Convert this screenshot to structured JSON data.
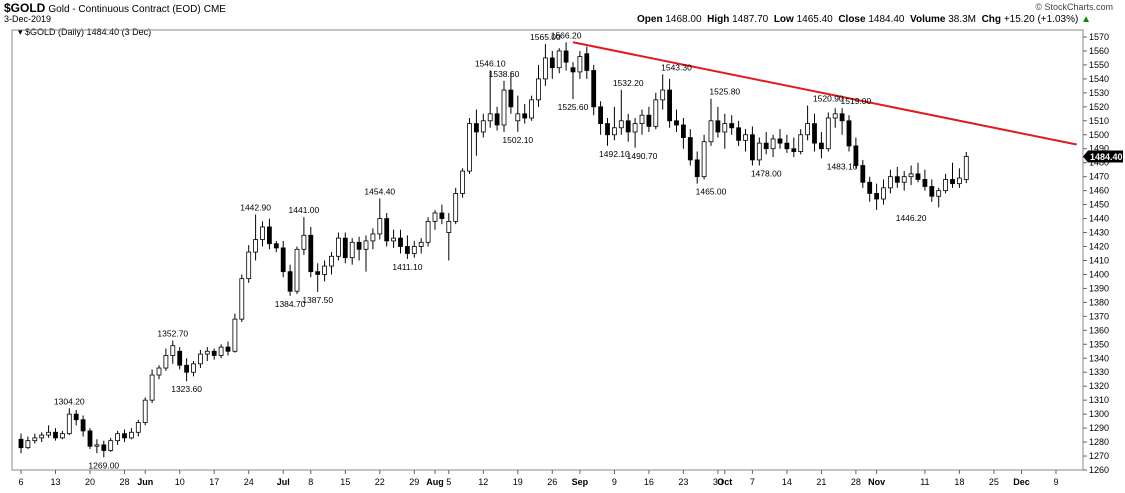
{
  "header": {
    "symbol": "$GOLD",
    "subtitle": "Gold - Continuous Contract (EOD)",
    "exchange": "CME",
    "date": "3-Dec-2019",
    "brand": "© StockCharts.com",
    "open_label": "Open",
    "open_value": "1468.00",
    "high_label": "High",
    "high_value": "1487.70",
    "low_label": "Low",
    "low_value": "1465.40",
    "close_label": "Close",
    "close_value": "1484.40",
    "volume_label": "Volume",
    "volume_value": "38.3M",
    "chg_label": "Chg",
    "chg_value": "+15.20 (+1.03%)",
    "chg_icon": "up-arrow-icon"
  },
  "legend": {
    "label": "$GOLD (Daily) 1484.40 (3 Dec)"
  },
  "colors": {
    "up_fill": "#ffffff",
    "down_fill": "#000000",
    "trendline": "#e31a1c",
    "grid": "#d8d8d8",
    "price_tag": "#000000",
    "chg_up": "#0a8a0a"
  },
  "chart_data": {
    "type": "candlestick",
    "title": "$GOLD (Daily) 1484.40 (3 Dec)",
    "ylim": [
      1260,
      1575
    ],
    "yticks": [
      1260,
      1270,
      1280,
      1290,
      1300,
      1310,
      1320,
      1330,
      1340,
      1350,
      1360,
      1370,
      1380,
      1390,
      1400,
      1410,
      1420,
      1430,
      1440,
      1450,
      1460,
      1470,
      1480,
      1490,
      1500,
      1510,
      1520,
      1530,
      1540,
      1550,
      1560,
      1570
    ],
    "grid": false,
    "last_price_tag": "1484.40",
    "xticks": [
      {
        "label": "6",
        "bar": 0
      },
      {
        "label": "13",
        "bar": 5
      },
      {
        "label": "20",
        "bar": 10
      },
      {
        "label": "28",
        "bar": 15
      },
      {
        "label": "Jun",
        "bar": 18,
        "bold": true
      },
      {
        "label": "10",
        "bar": 23
      },
      {
        "label": "17",
        "bar": 28
      },
      {
        "label": "24",
        "bar": 33
      },
      {
        "label": "Jul",
        "bar": 38,
        "bold": true
      },
      {
        "label": "8",
        "bar": 42
      },
      {
        "label": "15",
        "bar": 47
      },
      {
        "label": "22",
        "bar": 52
      },
      {
        "label": "29",
        "bar": 57
      },
      {
        "label": "Aug",
        "bar": 60,
        "bold": true
      },
      {
        "label": "5",
        "bar": 62
      },
      {
        "label": "12",
        "bar": 67
      },
      {
        "label": "19",
        "bar": 72
      },
      {
        "label": "26",
        "bar": 77
      },
      {
        "label": "Sep",
        "bar": 81,
        "bold": true
      },
      {
        "label": "9",
        "bar": 86
      },
      {
        "label": "16",
        "bar": 91
      },
      {
        "label": "23",
        "bar": 96
      },
      {
        "label": "30",
        "bar": 101
      },
      {
        "label": "Oct",
        "bar": 102,
        "bold": true
      },
      {
        "label": "7",
        "bar": 106
      },
      {
        "label": "14",
        "bar": 111
      },
      {
        "label": "21",
        "bar": 116
      },
      {
        "label": "28",
        "bar": 121
      },
      {
        "label": "Nov",
        "bar": 124,
        "bold": true
      },
      {
        "label": "11",
        "bar": 131
      },
      {
        "label": "18",
        "bar": 136
      },
      {
        "label": "25",
        "bar": 141
      },
      {
        "label": "Dec",
        "bar": 145,
        "bold": true
      },
      {
        "label": "9",
        "bar": 150
      }
    ],
    "candles": [
      [
        1282,
        1286,
        1272,
        1276
      ],
      [
        1276,
        1284,
        1275,
        1281
      ],
      [
        1281,
        1286,
        1279,
        1283
      ],
      [
        1283,
        1287,
        1280,
        1285
      ],
      [
        1285,
        1292,
        1283,
        1287
      ],
      [
        1287,
        1290,
        1281,
        1283
      ],
      [
        1283,
        1288,
        1282,
        1286
      ],
      [
        1286,
        1304.2,
        1285,
        1300
      ],
      [
        1300,
        1303,
        1292,
        1296
      ],
      [
        1296,
        1299,
        1284,
        1288
      ],
      [
        1288,
        1290,
        1275,
        1277
      ],
      [
        1277,
        1282,
        1272,
        1278
      ],
      [
        1278,
        1281,
        1269,
        1274
      ],
      [
        1274,
        1283,
        1273,
        1281
      ],
      [
        1281,
        1288,
        1278,
        1286
      ],
      [
        1286,
        1289,
        1280,
        1283
      ],
      [
        1283,
        1290,
        1282,
        1287
      ],
      [
        1287,
        1296,
        1284,
        1294
      ],
      [
        1294,
        1312,
        1292,
        1310
      ],
      [
        1310,
        1332,
        1308,
        1328
      ],
      [
        1328,
        1335,
        1325,
        1333
      ],
      [
        1333,
        1347,
        1331,
        1342
      ],
      [
        1342,
        1352.7,
        1336,
        1349
      ],
      [
        1345,
        1348,
        1332,
        1335
      ],
      [
        1335,
        1340,
        1323.6,
        1330
      ],
      [
        1330,
        1338,
        1327,
        1336
      ],
      [
        1336,
        1346,
        1333,
        1343
      ],
      [
        1343,
        1348,
        1338,
        1345
      ],
      [
        1345,
        1347,
        1339,
        1342
      ],
      [
        1342,
        1350,
        1340,
        1348
      ],
      [
        1348,
        1352,
        1342,
        1345
      ],
      [
        1345,
        1372,
        1344,
        1368
      ],
      [
        1368,
        1400,
        1366,
        1397
      ],
      [
        1397,
        1421,
        1394,
        1416
      ],
      [
        1416,
        1442.9,
        1410,
        1425
      ],
      [
        1425,
        1438,
        1420,
        1434
      ],
      [
        1434,
        1440,
        1418,
        1422
      ],
      [
        1422,
        1424,
        1416,
        1419
      ],
      [
        1419,
        1424,
        1398,
        1402
      ],
      [
        1402,
        1407,
        1384.7,
        1388
      ],
      [
        1388,
        1420,
        1386,
        1418
      ],
      [
        1418,
        1441,
        1414,
        1428
      ],
      [
        1428,
        1434,
        1398,
        1402
      ],
      [
        1402,
        1408,
        1387.5,
        1400
      ],
      [
        1400,
        1410,
        1395,
        1406
      ],
      [
        1406,
        1416,
        1400,
        1413
      ],
      [
        1413,
        1430,
        1410,
        1426
      ],
      [
        1426,
        1430,
        1408,
        1412
      ],
      [
        1412,
        1426,
        1407,
        1423
      ],
      [
        1423,
        1427,
        1410,
        1418
      ],
      [
        1418,
        1428,
        1402,
        1424
      ],
      [
        1424,
        1433,
        1418,
        1429
      ],
      [
        1429,
        1454.4,
        1425,
        1440
      ],
      [
        1440,
        1444,
        1420,
        1424
      ],
      [
        1424,
        1432,
        1419,
        1426
      ],
      [
        1426,
        1432,
        1415,
        1420
      ],
      [
        1420,
        1428,
        1411.1,
        1415
      ],
      [
        1415,
        1424,
        1412,
        1420
      ],
      [
        1420,
        1426,
        1415,
        1423
      ],
      [
        1423,
        1441,
        1420,
        1438
      ],
      [
        1438,
        1446,
        1432,
        1444
      ],
      [
        1444,
        1450,
        1436,
        1440
      ],
      [
        1430,
        1444,
        1410,
        1438
      ],
      [
        1438,
        1462,
        1436,
        1458
      ],
      [
        1458,
        1476,
        1455,
        1474
      ],
      [
        1474,
        1512,
        1472,
        1508
      ],
      [
        1508,
        1518,
        1485,
        1502
      ],
      [
        1502,
        1515,
        1498,
        1510
      ],
      [
        1510,
        1546.1,
        1505,
        1515
      ],
      [
        1515,
        1520,
        1503,
        1507
      ],
      [
        1507,
        1538.6,
        1502,
        1532
      ],
      [
        1532,
        1545,
        1515,
        1520
      ],
      [
        1510,
        1528,
        1502.1,
        1515
      ],
      [
        1515,
        1522,
        1508,
        1512
      ],
      [
        1512,
        1528,
        1510,
        1525
      ],
      [
        1525,
        1550,
        1520,
        1540
      ],
      [
        1540,
        1565,
        1535,
        1555
      ],
      [
        1555,
        1560,
        1540,
        1548
      ],
      [
        1548,
        1562,
        1544,
        1560
      ],
      [
        1560,
        1566.2,
        1546,
        1552
      ],
      [
        1548,
        1552,
        1525.6,
        1545
      ],
      [
        1545,
        1560,
        1540,
        1556
      ],
      [
        1558,
        1563,
        1540,
        1546
      ],
      [
        1546,
        1550,
        1514,
        1520
      ],
      [
        1520,
        1524,
        1500,
        1508
      ],
      [
        1508,
        1512,
        1492.1,
        1500
      ],
      [
        1500,
        1520,
        1496,
        1505
      ],
      [
        1505,
        1532.2,
        1500,
        1510
      ],
      [
        1510,
        1515,
        1495,
        1502
      ],
      [
        1502,
        1512,
        1490.7,
        1508
      ],
      [
        1508,
        1518,
        1500,
        1514
      ],
      [
        1514,
        1520,
        1502,
        1506
      ],
      [
        1506,
        1530,
        1504,
        1525
      ],
      [
        1525,
        1543.3,
        1518,
        1532
      ],
      [
        1532,
        1540,
        1505,
        1510
      ],
      [
        1510,
        1518,
        1502,
        1507
      ],
      [
        1507,
        1512,
        1490,
        1498
      ],
      [
        1498,
        1504,
        1478,
        1482
      ],
      [
        1482,
        1488,
        1465,
        1470
      ],
      [
        1470,
        1500,
        1468,
        1495
      ],
      [
        1495,
        1525.8,
        1492,
        1510
      ],
      [
        1510,
        1520,
        1498,
        1502
      ],
      [
        1502,
        1515,
        1490,
        1508
      ],
      [
        1508,
        1514,
        1500,
        1505
      ],
      [
        1505,
        1510,
        1492,
        1496
      ],
      [
        1496,
        1504,
        1488,
        1500
      ],
      [
        1500,
        1506,
        1478,
        1482
      ],
      [
        1482,
        1498,
        1478,
        1494
      ],
      [
        1494,
        1502,
        1486,
        1490
      ],
      [
        1490,
        1500,
        1484,
        1497
      ],
      [
        1497,
        1504,
        1490,
        1494
      ],
      [
        1494,
        1500,
        1487,
        1490
      ],
      [
        1490,
        1498,
        1484,
        1488
      ],
      [
        1488,
        1504,
        1486,
        1500
      ],
      [
        1500,
        1520.9,
        1496,
        1508
      ],
      [
        1508,
        1515,
        1488,
        1494
      ],
      [
        1494,
        1502,
        1483.1,
        1490
      ],
      [
        1490,
        1516,
        1488,
        1512
      ],
      [
        1512,
        1519,
        1505,
        1515
      ],
      [
        1515,
        1519,
        1500,
        1510
      ],
      [
        1510,
        1514,
        1488,
        1492
      ],
      [
        1492,
        1498,
        1476,
        1478
      ],
      [
        1478,
        1482,
        1462,
        1466
      ],
      [
        1466,
        1470,
        1452,
        1458
      ],
      [
        1458,
        1465,
        1446.2,
        1454
      ],
      [
        1454,
        1468,
        1450,
        1462
      ],
      [
        1462,
        1475,
        1458,
        1470
      ],
      [
        1470,
        1477,
        1462,
        1466
      ],
      [
        1466,
        1474,
        1460,
        1470
      ],
      [
        1470,
        1478,
        1464,
        1472
      ],
      [
        1472,
        1480,
        1466,
        1468
      ],
      [
        1468,
        1475,
        1460,
        1463
      ],
      [
        1463,
        1468,
        1452,
        1456
      ],
      [
        1456,
        1462,
        1448,
        1460
      ],
      [
        1460,
        1472,
        1458,
        1468
      ],
      [
        1468,
        1480,
        1462,
        1465
      ],
      [
        1465,
        1476,
        1462,
        1469
      ],
      [
        1468,
        1487.7,
        1465.4,
        1484.4
      ]
    ],
    "annotations": [
      {
        "text": "1304.20",
        "bar": 7,
        "value": 1304.2,
        "pos": "above"
      },
      {
        "text": "1269.00",
        "bar": 12,
        "value": 1269,
        "pos": "below"
      },
      {
        "text": "1352.70",
        "bar": 22,
        "value": 1352.7,
        "pos": "above"
      },
      {
        "text": "1323.60",
        "bar": 24,
        "value": 1323.6,
        "pos": "below"
      },
      {
        "text": "1442.90",
        "bar": 34,
        "value": 1442.9,
        "pos": "above"
      },
      {
        "text": "1384.70",
        "bar": 39,
        "value": 1384.7,
        "pos": "below"
      },
      {
        "text": "1441.00",
        "bar": 41,
        "value": 1441,
        "pos": "above"
      },
      {
        "text": "1387.50",
        "bar": 43,
        "value": 1387.5,
        "pos": "below"
      },
      {
        "text": "1454.40",
        "bar": 52,
        "value": 1454.4,
        "pos": "above"
      },
      {
        "text": "1411.10",
        "bar": 56,
        "value": 1411.1,
        "pos": "below"
      },
      {
        "text": "1546.10",
        "bar": 68,
        "value": 1546.1,
        "pos": "above"
      },
      {
        "text": "1538.60",
        "bar": 70,
        "value": 1538.6,
        "pos": "above"
      },
      {
        "text": "1502.10",
        "bar": 72,
        "value": 1502.1,
        "pos": "below"
      },
      {
        "text": "1565.00",
        "bar": 76,
        "value": 1565,
        "pos": "above"
      },
      {
        "text": "1566.20",
        "bar": 79,
        "value": 1566.2,
        "pos": "above"
      },
      {
        "text": "1525.60",
        "bar": 80,
        "value": 1525.6,
        "pos": "below"
      },
      {
        "text": "1532.20",
        "bar": 88,
        "value": 1532.2,
        "pos": "above"
      },
      {
        "text": "1492.10",
        "bar": 86,
        "value": 1492.1,
        "pos": "below"
      },
      {
        "text": "1490.70",
        "bar": 90,
        "value": 1490.7,
        "pos": "below"
      },
      {
        "text": "1543.30",
        "bar": 95,
        "value": 1543.3,
        "pos": "above"
      },
      {
        "text": "1465.00",
        "bar": 100,
        "value": 1465,
        "pos": "below"
      },
      {
        "text": "1525.80",
        "bar": 102,
        "value": 1525.8,
        "pos": "above"
      },
      {
        "text": "1478.00",
        "bar": 108,
        "value": 1478,
        "pos": "below"
      },
      {
        "text": "1520.90",
        "bar": 117,
        "value": 1520.9,
        "pos": "above"
      },
      {
        "text": "1519.00",
        "bar": 121,
        "value": 1519,
        "pos": "above"
      },
      {
        "text": "1483.10",
        "bar": 119,
        "value": 1483.1,
        "pos": "below"
      },
      {
        "text": "1446.20",
        "bar": 129,
        "value": 1446.2,
        "pos": "below"
      }
    ],
    "trendline": {
      "from_bar": 80,
      "from_value": 1566.2,
      "to_bar": 153,
      "to_value": 1493
    }
  }
}
